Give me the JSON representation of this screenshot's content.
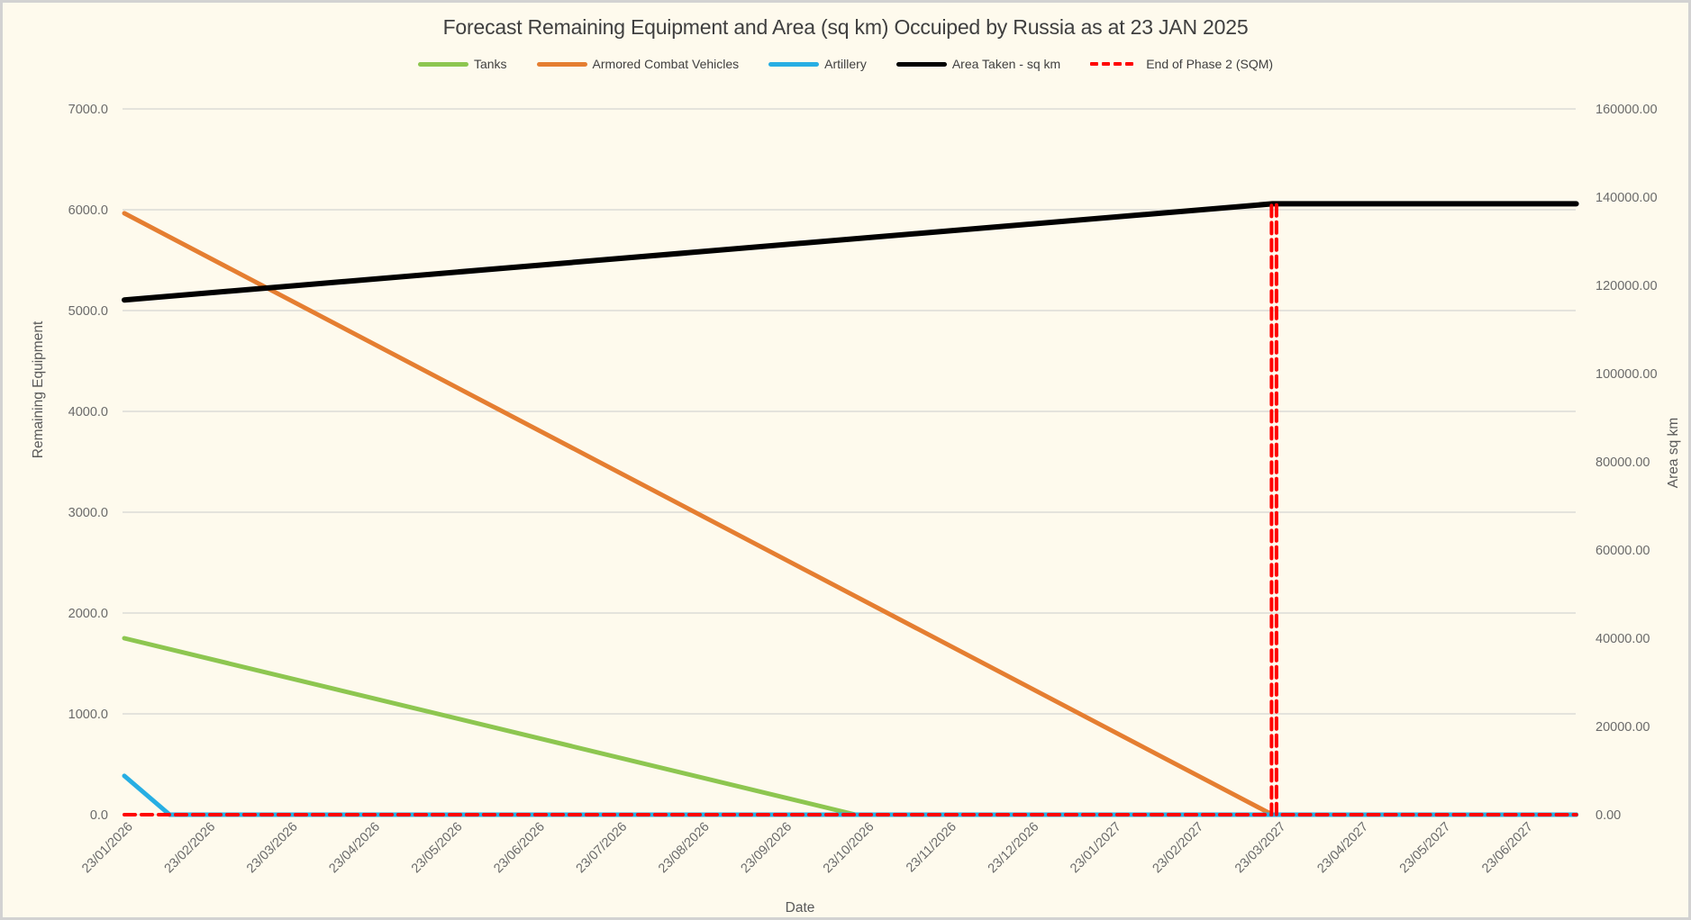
{
  "title": "Forecast Remaining Equipment and Area (sq km) Occuiped by Russia as at 23 JAN 2025",
  "colors": {
    "background": "#FEFAED",
    "gridline": "#DBDBD6",
    "tick_text": "#6A6A6A",
    "title_text": "#3F3F3F",
    "tanks": "#8DC650",
    "armored_combat_vehicles": "#E57E31",
    "artillery": "#27AEE3",
    "area_taken": "#000000",
    "end_of_phase": "#FF0000"
  },
  "chart_data": {
    "type": "line",
    "title": "Forecast Remaining Equipment and Area (sq km) Occuiped by Russia as at 23 JAN 2025",
    "xlabel": "Date",
    "ylabel_left": "Remaining Equipment",
    "ylabel_right": "Area sq km",
    "grid": "horizontal-only",
    "legend_position": "top",
    "x_categories": [
      "23/01/2026",
      "23/02/2026",
      "23/03/2026",
      "23/04/2026",
      "23/05/2026",
      "23/06/2026",
      "23/07/2026",
      "23/08/2026",
      "23/09/2026",
      "23/10/2026",
      "23/11/2026",
      "23/12/2026",
      "23/01/2027",
      "23/02/2027",
      "23/03/2027",
      "23/04/2027",
      "23/05/2027",
      "23/06/2027"
    ],
    "x_note": "x expressed in months since 23/01/2026; lines extend slightly past last labelled month",
    "left_axis": {
      "min": 0,
      "max": 7000,
      "tick_step": 1000,
      "tick_labels": [
        "0.0",
        "1000.0",
        "2000.0",
        "3000.0",
        "4000.0",
        "5000.0",
        "6000.0",
        "7000.0"
      ]
    },
    "right_axis": {
      "min": 0,
      "max": 160000,
      "tick_step": 20000,
      "tick_labels": [
        "0.00",
        "20000.00",
        "40000.00",
        "60000.00",
        "80000.00",
        "100000.00",
        "120000.00",
        "140000.00",
        "160000.00"
      ]
    },
    "series": [
      {
        "name": "Tanks",
        "axis": "left",
        "color": "#8DC650",
        "dash": false,
        "width": 5,
        "points_x_months": [
          0,
          8.88,
          17.63
        ],
        "points_y": [
          1750,
          0,
          0
        ],
        "note": "declines linearly from ~1750 on 23/01/2026 to 0 by 23/10/2026, then flat at 0"
      },
      {
        "name": "Armored Combat Vehicles",
        "axis": "left",
        "color": "#E57E31",
        "dash": false,
        "width": 5,
        "points_x_months": [
          0,
          13.94,
          17.63
        ],
        "points_y": [
          5965,
          0,
          0
        ],
        "note": "declines linearly from ~5965 on 23/01/2026 to 0 by 23/03/2027, then flat at 0"
      },
      {
        "name": "Artillery",
        "axis": "left",
        "color": "#27AEE3",
        "dash": false,
        "width": 5,
        "points_x_months": [
          0,
          0.55,
          17.63
        ],
        "points_y": [
          385,
          0,
          0
        ],
        "note": "declines from ~385 on 23/01/2026 to 0 within about two weeks, then flat at 0"
      },
      {
        "name": "Area Taken - sq km",
        "axis": "right",
        "color": "#000000",
        "dash": false,
        "width": 6,
        "points_x_months": [
          0,
          13.94,
          17.63
        ],
        "points_y": [
          116700,
          138500,
          138500
        ],
        "note": "rises linearly from ~116,700 sq km to ~138,500 sq km at 23/03/2027, then flat"
      },
      {
        "name": "End of Phase 2 (SQM)",
        "axis": "right",
        "color": "#FF0000",
        "dash": true,
        "width": 4,
        "points_x_months": [
          0,
          13.93,
          13.93,
          13.99,
          13.99,
          17.63
        ],
        "points_y": [
          0,
          0,
          138300,
          138300,
          0,
          0
        ],
        "note": "red dashed marker: 0 along baseline with a vertical spike to ~138,300 at 23/03/2027"
      }
    ]
  },
  "legend": [
    {
      "label": "Tanks",
      "color": "#8DC650",
      "dashed": false
    },
    {
      "label": "Armored Combat Vehicles",
      "color": "#E57E31",
      "dashed": false
    },
    {
      "label": "Artillery",
      "color": "#27AEE3",
      "dashed": false
    },
    {
      "label": "Area Taken - sq km",
      "color": "#000000",
      "dashed": false
    },
    {
      "label": "End of Phase 2 (SQM)",
      "color": "#FF0000",
      "dashed": true
    }
  ]
}
